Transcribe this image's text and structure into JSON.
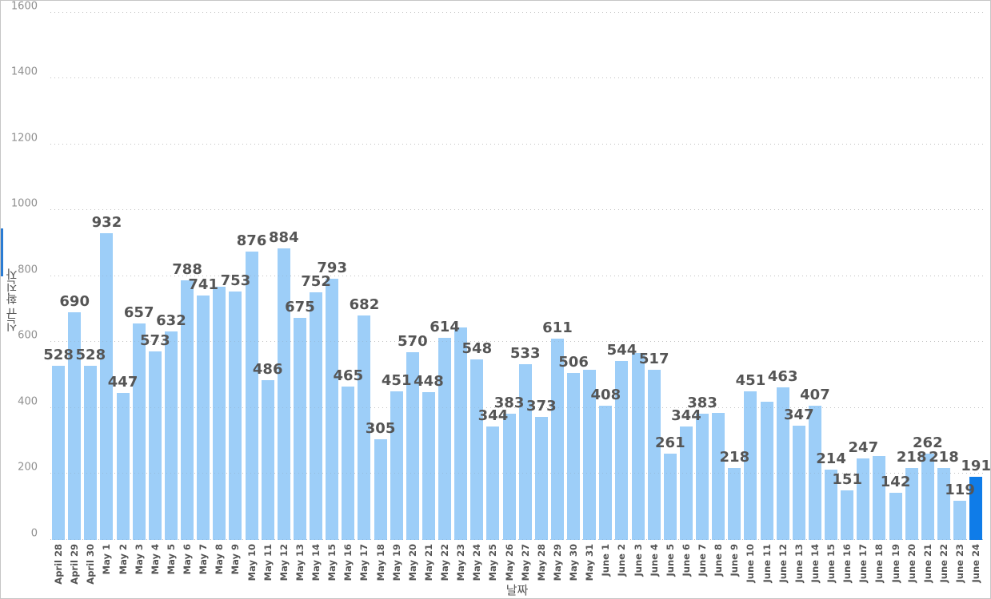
{
  "chart_data": {
    "type": "bar",
    "title": "",
    "xlabel": "날짜",
    "ylabel": "신규 확진자",
    "ylim": [
      0,
      1600
    ],
    "yticks": [
      0,
      200,
      400,
      600,
      800,
      1000,
      1200,
      1400,
      1600
    ],
    "grid": "horizontal dotted",
    "legend": "none",
    "highlight_index": 57,
    "bars": [
      {
        "date": "April 28",
        "value": 528,
        "label": "528"
      },
      {
        "date": "April 29",
        "value": 690,
        "label": "690"
      },
      {
        "date": "April 30",
        "value": 528,
        "label": "528"
      },
      {
        "date": "May 1",
        "value": 932,
        "label": "932"
      },
      {
        "date": "May 2",
        "value": 447,
        "label": "447"
      },
      {
        "date": "May 3",
        "value": 657,
        "label": "657"
      },
      {
        "date": "May 4",
        "value": 573,
        "label": "573"
      },
      {
        "date": "May 5",
        "value": 632,
        "label": "632"
      },
      {
        "date": "May 6",
        "value": 788,
        "label": "788"
      },
      {
        "date": "May 7",
        "value": 741,
        "label": "741"
      },
      {
        "date": "May 8",
        "value": 768,
        "label": ""
      },
      {
        "date": "May 9",
        "value": 753,
        "label": "753"
      },
      {
        "date": "May 10",
        "value": 876,
        "label": "876"
      },
      {
        "date": "May 11",
        "value": 486,
        "label": "486"
      },
      {
        "date": "May 12",
        "value": 884,
        "label": "884"
      },
      {
        "date": "May 13",
        "value": 675,
        "label": "675"
      },
      {
        "date": "May 14",
        "value": 752,
        "label": "752"
      },
      {
        "date": "May 15",
        "value": 793,
        "label": "793"
      },
      {
        "date": "May 16",
        "value": 465,
        "label": "465"
      },
      {
        "date": "May 17",
        "value": 682,
        "label": "682"
      },
      {
        "date": "May 18",
        "value": 305,
        "label": "305"
      },
      {
        "date": "May 19",
        "value": 451,
        "label": "451"
      },
      {
        "date": "May 20",
        "value": 570,
        "label": "570"
      },
      {
        "date": "May 21",
        "value": 448,
        "label": "448"
      },
      {
        "date": "May 22",
        "value": 614,
        "label": "614"
      },
      {
        "date": "May 23",
        "value": 645,
        "label": ""
      },
      {
        "date": "May 24",
        "value": 548,
        "label": "548"
      },
      {
        "date": "May 25",
        "value": 344,
        "label": "344"
      },
      {
        "date": "May 26",
        "value": 383,
        "label": "383"
      },
      {
        "date": "May 27",
        "value": 533,
        "label": "533"
      },
      {
        "date": "May 28",
        "value": 373,
        "label": "373"
      },
      {
        "date": "May 29",
        "value": 611,
        "label": "611"
      },
      {
        "date": "May 30",
        "value": 506,
        "label": "506"
      },
      {
        "date": "May 31",
        "value": 516,
        "label": ""
      },
      {
        "date": "June 1",
        "value": 408,
        "label": "408"
      },
      {
        "date": "June 2",
        "value": 544,
        "label": "544"
      },
      {
        "date": "June 3",
        "value": 568,
        "label": ""
      },
      {
        "date": "June 4",
        "value": 517,
        "label": "517"
      },
      {
        "date": "June 5",
        "value": 261,
        "label": "261"
      },
      {
        "date": "June 6",
        "value": 344,
        "label": "344"
      },
      {
        "date": "June 7",
        "value": 383,
        "label": "383"
      },
      {
        "date": "June 8",
        "value": 385,
        "label": ""
      },
      {
        "date": "June 9",
        "value": 218,
        "label": "218"
      },
      {
        "date": "June 10",
        "value": 451,
        "label": "451"
      },
      {
        "date": "June 11",
        "value": 420,
        "label": ""
      },
      {
        "date": "June 12",
        "value": 463,
        "label": "463"
      },
      {
        "date": "June 13",
        "value": 347,
        "label": "347"
      },
      {
        "date": "June 14",
        "value": 407,
        "label": "407"
      },
      {
        "date": "June 15",
        "value": 214,
        "label": "214"
      },
      {
        "date": "June 16",
        "value": 151,
        "label": "151"
      },
      {
        "date": "June 17",
        "value": 247,
        "label": "247"
      },
      {
        "date": "June 18",
        "value": 255,
        "label": ""
      },
      {
        "date": "June 19",
        "value": 142,
        "label": "142"
      },
      {
        "date": "June 20",
        "value": 218,
        "label": "218"
      },
      {
        "date": "June 21",
        "value": 262,
        "label": "262"
      },
      {
        "date": "June 22",
        "value": 218,
        "label": "218"
      },
      {
        "date": "June 23",
        "value": 119,
        "label": "119"
      },
      {
        "date": "June 24",
        "value": 191,
        "label": "191"
      }
    ]
  },
  "colors": {
    "bar": "#9DCEF8",
    "bar_highlight": "#0F7CE8",
    "value_label": "#555555",
    "axis_title": "#555555",
    "tick_label": "#8F8F8F",
    "gridline": "#D2D2D2",
    "background": "#FFFFFF",
    "border": "#C6C6C6"
  }
}
